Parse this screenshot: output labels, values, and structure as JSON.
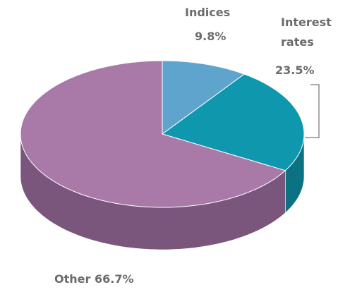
{
  "chart_data": {
    "type": "pie",
    "categories": [
      "Indices",
      "Interest rates",
      "Other"
    ],
    "values": [
      9.8,
      23.5,
      66.7
    ],
    "value_labels": [
      "9.8%",
      "23.5%",
      "66.7%"
    ],
    "colors": [
      "#5ea4cd",
      "#0f97ad",
      "#a97aa8"
    ],
    "side_colors": [
      "#3f7fa3",
      "#0a7283",
      "#7b567c"
    ]
  }
}
